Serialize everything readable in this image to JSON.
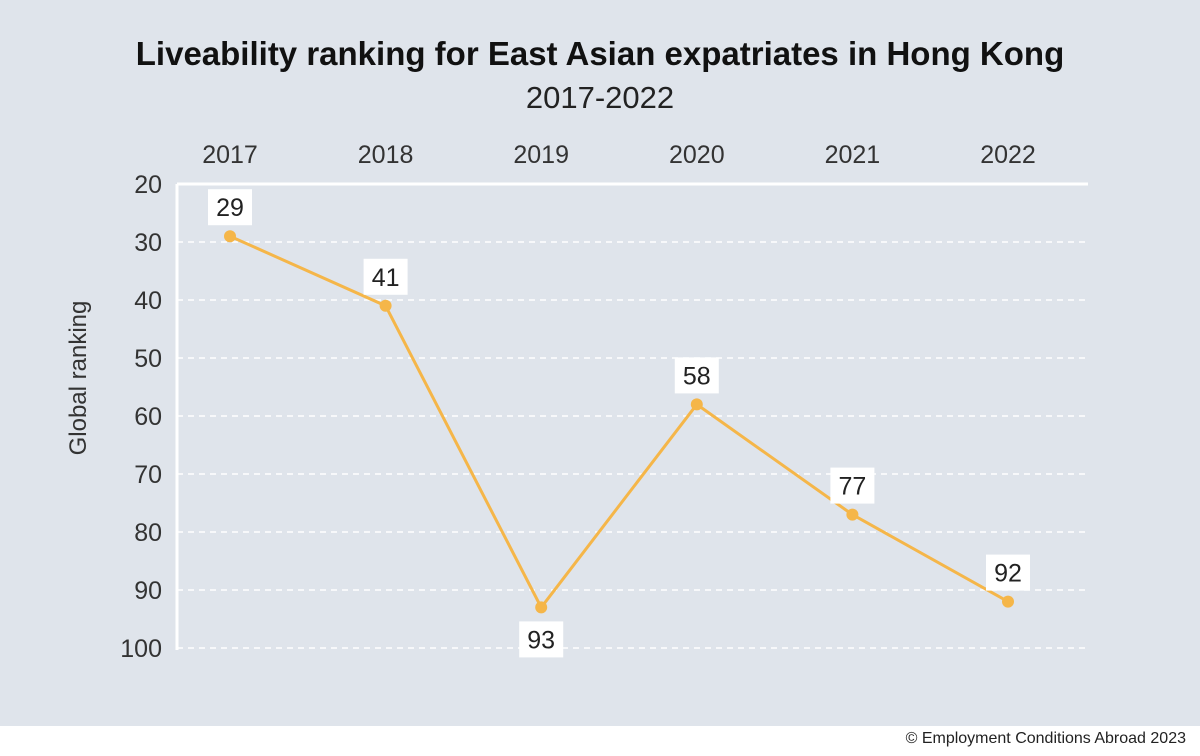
{
  "header": {
    "title": "Liveability ranking for East Asian expatriates in Hong Kong",
    "subtitle": "2017-2022"
  },
  "footer": {
    "credit": "© Employment Conditions Abroad 2023"
  },
  "colors": {
    "background": "#dfe4eb",
    "line": "#f5b649",
    "grid": "#ffffff",
    "label_bg": "#ffffff"
  },
  "chart_data": {
    "type": "line",
    "title": "Liveability ranking for East Asian expatriates in Hong Kong",
    "subtitle": "2017-2022",
    "categories": [
      "2017",
      "2018",
      "2019",
      "2020",
      "2021",
      "2022"
    ],
    "series": [
      {
        "values": [
          29,
          41,
          93,
          58,
          77,
          92
        ]
      }
    ],
    "ylabel": "Global ranking",
    "xlabel": "",
    "ylim": [
      20,
      100
    ],
    "y_inverted": true,
    "yticks": [
      20,
      30,
      40,
      50,
      60,
      70,
      80,
      90,
      100
    ],
    "x_axis_position": "top",
    "grid": "horizontal dashed",
    "data_labels": [
      "29",
      "41",
      "93",
      "58",
      "77",
      "92"
    ],
    "data_label_positions": [
      "above",
      "above",
      "below",
      "above",
      "above",
      "above"
    ]
  }
}
